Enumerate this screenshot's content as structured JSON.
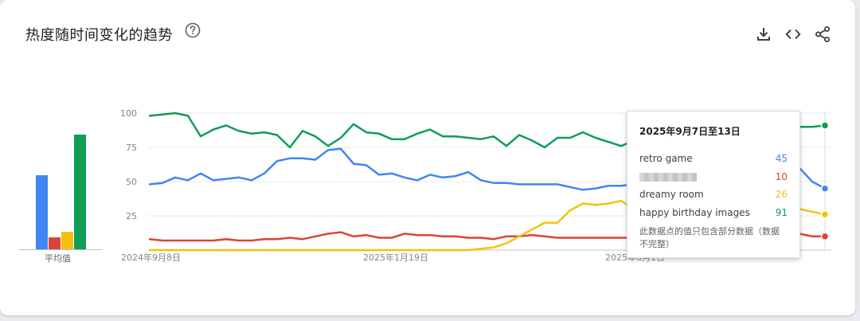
{
  "header": {
    "title": "热度随时间变化的趋势",
    "help_icon": "help-circle-icon",
    "download_icon": "download-icon",
    "embed_icon": "code-icon",
    "share_icon": "share-icon"
  },
  "average": {
    "label": "平均值",
    "bars": [
      {
        "series": "retro game",
        "value": 54,
        "color": "#4285f4"
      },
      {
        "series": "hidden-term",
        "value": 9,
        "color": "#db4437"
      },
      {
        "series": "dreamy room",
        "value": 13,
        "color": "#f4c20d"
      },
      {
        "series": "happy birthday images",
        "value": 84,
        "color": "#0f9d58"
      }
    ]
  },
  "tooltip": {
    "title": "2025年9月7日至13日",
    "rows": [
      {
        "name": "retro game",
        "value": "45",
        "color": "#4285f4"
      },
      {
        "name": "",
        "value": "10",
        "color": "#db4437"
      },
      {
        "name": "dreamy room",
        "value": "26",
        "color": "#f4c20d"
      },
      {
        "name": "happy birthday images",
        "value": "91",
        "color": "#0f9d58"
      }
    ],
    "note": "此数据点的值只包含部分数据（数据不完整）"
  },
  "chart_data": {
    "type": "line",
    "ylim": [
      0,
      100
    ],
    "yticks": [
      25,
      50,
      75,
      100
    ],
    "xticks": [
      {
        "label": "2024年9月8日",
        "index": 0
      },
      {
        "label": "2025年1月19日",
        "index": 19
      },
      {
        "label": "2025年6月1日",
        "index": 38
      }
    ],
    "x_count": 54,
    "series": [
      {
        "name": "retro game",
        "color": "#4285f4",
        "values": [
          48,
          49,
          53,
          51,
          56,
          51,
          52,
          53,
          51,
          56,
          65,
          67,
          67,
          66,
          73,
          74,
          63,
          62,
          55,
          56,
          53,
          51,
          55,
          53,
          54,
          57,
          51,
          49,
          49,
          48,
          48,
          48,
          48,
          46,
          44,
          45,
          47,
          47,
          48,
          49,
          49,
          50,
          48,
          47,
          47,
          46,
          47,
          49,
          53,
          58,
          66,
          60,
          50,
          45
        ]
      },
      {
        "name": "",
        "color": "#db4437",
        "values": [
          8,
          7,
          7,
          7,
          7,
          7,
          8,
          7,
          7,
          8,
          8,
          9,
          8,
          10,
          12,
          13,
          10,
          11,
          9,
          9,
          12,
          11,
          11,
          10,
          10,
          9,
          9,
          8,
          10,
          10,
          11,
          10,
          9,
          9,
          9,
          9,
          9,
          9,
          9,
          8,
          8,
          8,
          8,
          8,
          8,
          7,
          8,
          8,
          8,
          9,
          10,
          12,
          10,
          10
        ]
      },
      {
        "name": "dreamy room",
        "color": "#f4c20d",
        "values": [
          0,
          0,
          0,
          0,
          0,
          0,
          0,
          0,
          0,
          0,
          0,
          0,
          0,
          0,
          0,
          0,
          0,
          0,
          0,
          0,
          0,
          0,
          0,
          0,
          0,
          0,
          1,
          2,
          5,
          10,
          15,
          20,
          20,
          29,
          34,
          33,
          34,
          36,
          30,
          33,
          34,
          33,
          33,
          32,
          33,
          33,
          33,
          34,
          33,
          32,
          31,
          30,
          28,
          26
        ]
      },
      {
        "name": "happy birthday images",
        "color": "#0f9d58",
        "values": [
          98,
          99,
          100,
          98,
          83,
          88,
          91,
          87,
          85,
          86,
          84,
          75,
          87,
          83,
          76,
          82,
          92,
          86,
          85,
          81,
          81,
          85,
          88,
          83,
          83,
          82,
          81,
          83,
          76,
          84,
          80,
          75,
          82,
          82,
          86,
          82,
          79,
          76,
          80,
          83,
          80,
          80,
          82,
          79,
          80,
          82,
          78,
          76,
          88,
          78,
          82,
          90,
          90,
          91
        ]
      }
    ]
  }
}
